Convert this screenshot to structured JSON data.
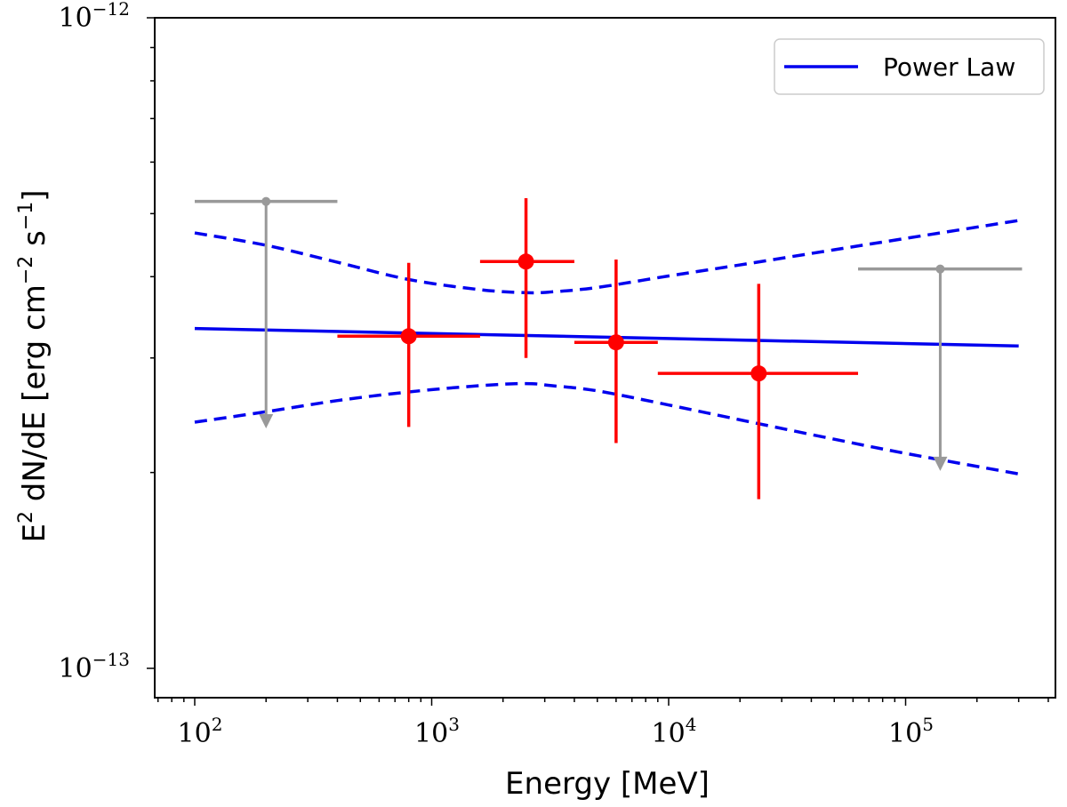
{
  "chart_data": {
    "type": "scatter",
    "title": "",
    "xlabel": "Energy [MeV]",
    "ylabel": {
      "main": "E",
      "main_sup": "2",
      "mid": " dN/dE [erg cm",
      "mid_sup": "−2",
      "tail": " s",
      "tail_sup": "−1",
      "end": "]"
    },
    "xscale": "log",
    "yscale": "log",
    "xlim": [
      68,
      460000
    ],
    "ylim": [
      9e-14,
      1e-12
    ],
    "x_ticks": [
      {
        "value": 100,
        "base": "10",
        "exp": "2"
      },
      {
        "value": 1000,
        "base": "10",
        "exp": "3"
      },
      {
        "value": 10000,
        "base": "10",
        "exp": "4"
      },
      {
        "value": 100000,
        "base": "10",
        "exp": "5"
      }
    ],
    "y_ticks": [
      {
        "value": 1e-13,
        "base": "10",
        "exp": "−13"
      },
      {
        "value": 1e-12,
        "base": "10",
        "exp": "−12"
      }
    ],
    "legend": {
      "position": "top-right",
      "entries": [
        {
          "label": "Power Law",
          "color": "#0000ee"
        }
      ]
    },
    "colors": {
      "model": "#0000ee",
      "points": "#ff0000",
      "upper_limits": "#999999"
    },
    "power_law": {
      "x": [
        100,
        300000
      ],
      "y": [
        3.33e-13,
        3.13e-13
      ]
    },
    "butterfly_upper": {
      "x": [
        100,
        200,
        400,
        800,
        1600,
        2500,
        3200,
        5000,
        10000,
        20000,
        50000,
        100000,
        300000
      ],
      "y": [
        4.67e-13,
        4.47e-13,
        4.21e-13,
        3.96e-13,
        3.82e-13,
        3.78e-13,
        3.79e-13,
        3.85e-13,
        4.01e-13,
        4.17e-13,
        4.4e-13,
        4.58e-13,
        4.88e-13
      ]
    },
    "butterfly_lower": {
      "x": [
        100,
        200,
        400,
        800,
        1600,
        2500,
        3200,
        5000,
        10000,
        20000,
        50000,
        100000,
        300000
      ],
      "y": [
        2.39e-13,
        2.48e-13,
        2.58e-13,
        2.66e-13,
        2.72e-13,
        2.74e-13,
        2.72e-13,
        2.67e-13,
        2.54e-13,
        2.41e-13,
        2.25e-13,
        2.14e-13,
        1.99e-13
      ]
    },
    "points": [
      {
        "x": 800,
        "xlo": 400,
        "xhi": 1600,
        "y": 3.24e-13,
        "ylo": 2.35e-13,
        "yhi": 4.2e-13
      },
      {
        "x": 2500,
        "xlo": 1600,
        "xhi": 4000,
        "y": 4.22e-13,
        "ylo": 3e-13,
        "yhi": 5.28e-13
      },
      {
        "x": 6000,
        "xlo": 4000,
        "xhi": 9000,
        "y": 3.17e-13,
        "ylo": 2.22e-13,
        "yhi": 4.25e-13
      },
      {
        "x": 24000,
        "xlo": 9000,
        "xhi": 63000,
        "y": 2.84e-13,
        "ylo": 1.82e-13,
        "yhi": 3.9e-13
      }
    ],
    "upper_limits": [
      {
        "x": 200,
        "xlo": 100,
        "xhi": 400,
        "y": 5.22e-13,
        "arrow_to": 2.36e-13
      },
      {
        "x": 140000,
        "xlo": 63000,
        "xhi": 310000,
        "y": 4.11e-13,
        "arrow_to": 2.03e-13
      }
    ]
  }
}
